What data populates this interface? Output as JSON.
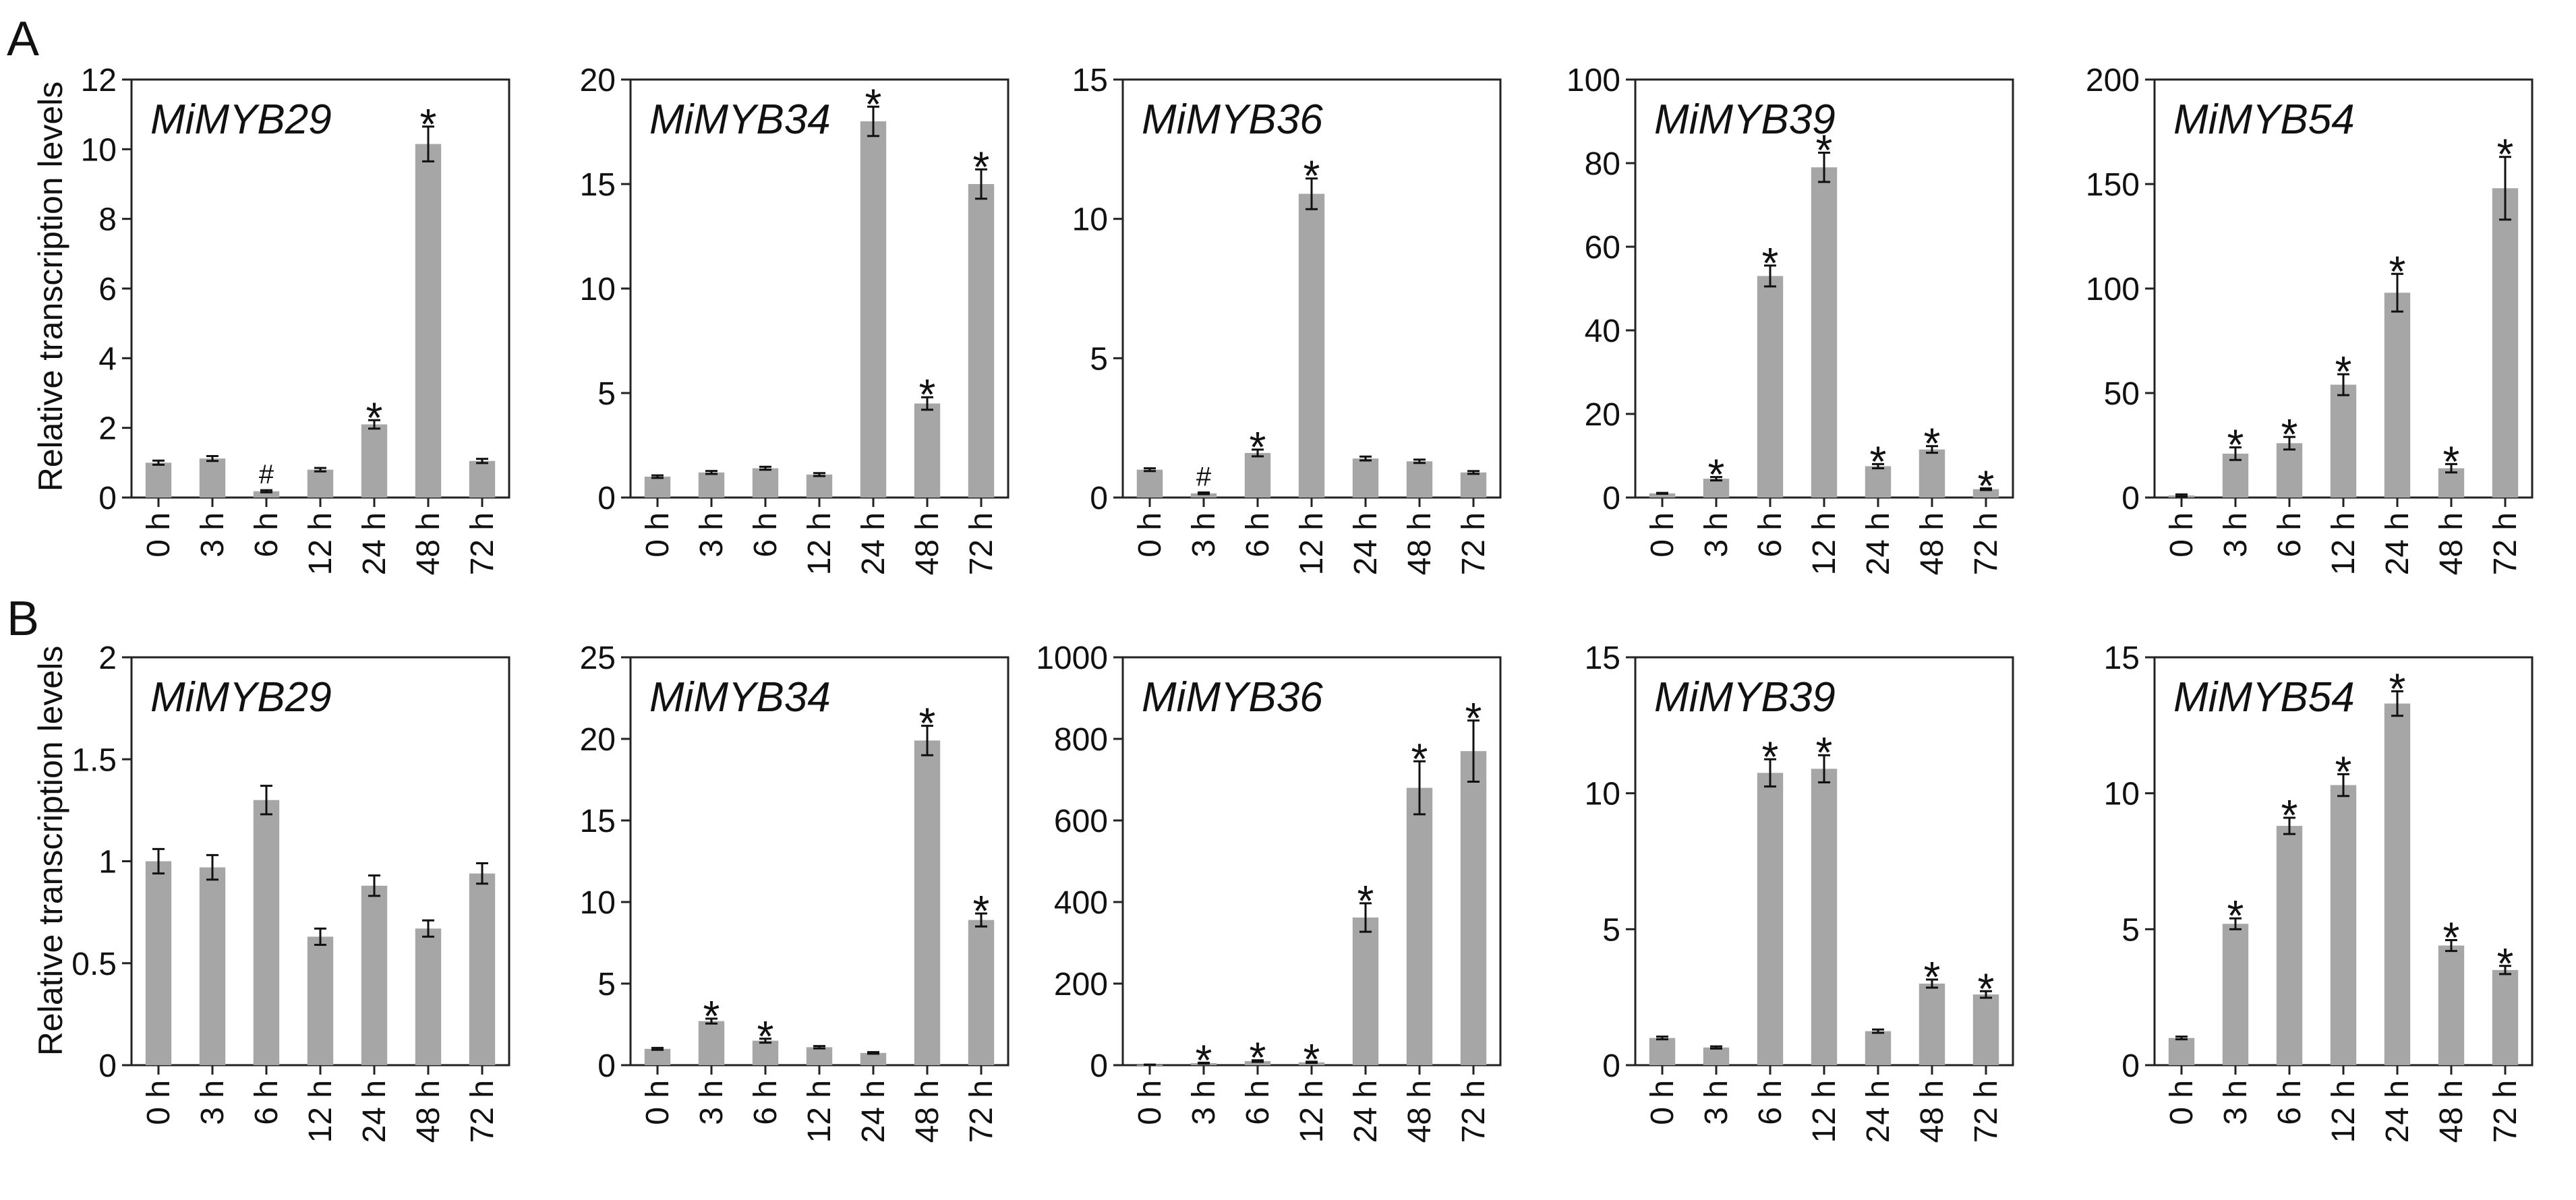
{
  "figure": {
    "panel_labels": [
      "A",
      "B"
    ],
    "y_axis_label": "Relative transcription  levels"
  },
  "chart_data": [
    {
      "type": "bar",
      "row": 0,
      "title": "MiMYB29",
      "categories": [
        "0 h",
        "3 h",
        "6 h",
        "12 h",
        "24 h",
        "48 h",
        "72 h"
      ],
      "ylim": [
        0,
        12
      ],
      "yticks": [
        0,
        2,
        4,
        6,
        8,
        10,
        12
      ],
      "values": [
        1.0,
        1.12,
        0.18,
        0.8,
        2.1,
        10.15,
        1.05
      ],
      "errors": [
        0.06,
        0.07,
        0.03,
        0.05,
        0.12,
        0.5,
        0.06
      ],
      "marks": [
        "",
        "",
        "#",
        "",
        "*",
        "*",
        ""
      ],
      "color": "#a6a6a6",
      "ylabel": "Relative transcription  levels",
      "xlabel": ""
    },
    {
      "type": "bar",
      "row": 0,
      "title": "MiMYB34",
      "categories": [
        "0 h",
        "3 h",
        "6 h",
        "12 h",
        "24 h",
        "48 h",
        "72 h"
      ],
      "ylim": [
        0,
        20
      ],
      "yticks": [
        0,
        5,
        10,
        15,
        20
      ],
      "values": [
        1.0,
        1.2,
        1.4,
        1.1,
        18.0,
        4.5,
        15.0
      ],
      "errors": [
        0.06,
        0.07,
        0.07,
        0.07,
        0.7,
        0.3,
        0.7
      ],
      "marks": [
        "",
        "",
        "",
        "",
        "*",
        "*",
        "*"
      ],
      "color": "#a6a6a6",
      "xlabel": ""
    },
    {
      "type": "bar",
      "row": 0,
      "title": "MiMYB36",
      "categories": [
        "0 h",
        "3 h",
        "6 h",
        "12 h",
        "24 h",
        "48 h",
        "72 h"
      ],
      "ylim": [
        0,
        15
      ],
      "yticks": [
        0,
        5,
        10,
        15
      ],
      "values": [
        1.0,
        0.15,
        1.6,
        10.9,
        1.4,
        1.3,
        0.9
      ],
      "errors": [
        0.05,
        0.03,
        0.12,
        0.55,
        0.07,
        0.06,
        0.05
      ],
      "marks": [
        "",
        "#",
        "*",
        "*",
        "",
        "",
        ""
      ],
      "color": "#a6a6a6",
      "xlabel": ""
    },
    {
      "type": "bar",
      "row": 0,
      "title": "MiMYB39",
      "categories": [
        "0 h",
        "3 h",
        "6 h",
        "12 h",
        "24 h",
        "48 h",
        "72 h"
      ],
      "ylim": [
        0,
        100
      ],
      "yticks": [
        0,
        20,
        40,
        60,
        80,
        100
      ],
      "values": [
        1.0,
        4.5,
        53.0,
        79.0,
        7.5,
        11.5,
        2.0
      ],
      "errors": [
        0.1,
        0.4,
        2.5,
        3.5,
        0.5,
        0.8,
        0.2
      ],
      "marks": [
        "",
        "*",
        "*",
        "*",
        "*",
        "*",
        "*"
      ],
      "color": "#a6a6a6",
      "xlabel": ""
    },
    {
      "type": "bar",
      "row": 0,
      "title": "MiMYB54",
      "categories": [
        "0 h",
        "3 h",
        "6 h",
        "12 h",
        "24 h",
        "48 h",
        "72 h"
      ],
      "ylim": [
        0,
        200
      ],
      "yticks": [
        0,
        50,
        100,
        150,
        200
      ],
      "values": [
        1.0,
        21.0,
        26.0,
        54.0,
        98.0,
        14.0,
        148.0
      ],
      "errors": [
        0.5,
        3.0,
        3.0,
        5.0,
        9.0,
        2.0,
        15.0
      ],
      "marks": [
        "",
        "*",
        "*",
        "*",
        "*",
        "*",
        "*"
      ],
      "color": "#a6a6a6",
      "xlabel": ""
    },
    {
      "type": "bar",
      "row": 1,
      "title": "MiMYB29",
      "categories": [
        "0 h",
        "3 h",
        "6 h",
        "12 h",
        "24 h",
        "48 h",
        "72 h"
      ],
      "ylim": [
        0,
        2
      ],
      "yticks": [
        "0",
        "0.5",
        "1",
        "1.5",
        "2"
      ],
      "values": [
        1.0,
        0.97,
        1.3,
        0.63,
        0.88,
        0.67,
        0.94
      ],
      "errors": [
        0.06,
        0.06,
        0.07,
        0.04,
        0.05,
        0.04,
        0.05
      ],
      "marks": [
        "",
        "",
        "",
        "",
        "",
        "",
        ""
      ],
      "color": "#a6a6a6",
      "ylabel": "Relative transcription  levels",
      "xlabel": ""
    },
    {
      "type": "bar",
      "row": 1,
      "title": "MiMYB34",
      "categories": [
        "0 h",
        "3 h",
        "6 h",
        "12 h",
        "24 h",
        "48 h",
        "72 h"
      ],
      "ylim": [
        0,
        25
      ],
      "yticks": [
        0,
        5,
        10,
        15,
        20,
        25
      ],
      "values": [
        1.0,
        2.7,
        1.5,
        1.1,
        0.75,
        19.9,
        8.9
      ],
      "errors": [
        0.06,
        0.15,
        0.12,
        0.07,
        0.05,
        0.9,
        0.4
      ],
      "marks": [
        "",
        "*",
        "*",
        "",
        "",
        "*",
        "*"
      ],
      "color": "#a6a6a6",
      "xlabel": ""
    },
    {
      "type": "bar",
      "row": 1,
      "title": "MiMYB36",
      "categories": [
        "0 h",
        "3 h",
        "6 h",
        "12 h",
        "24 h",
        "48 h",
        "72 h"
      ],
      "ylim": [
        0,
        1000
      ],
      "yticks": [
        0,
        200,
        400,
        600,
        800,
        1000
      ],
      "values": [
        1.0,
        5.0,
        10.0,
        7.0,
        362.0,
        680.0,
        770.0
      ],
      "errors": [
        0.5,
        1.0,
        2.0,
        1.5,
        35.0,
        65.0,
        75.0
      ],
      "marks": [
        "",
        "*",
        "*",
        "*",
        "*",
        "*",
        "*"
      ],
      "color": "#a6a6a6",
      "xlabel": ""
    },
    {
      "type": "bar",
      "row": 1,
      "title": "MiMYB39",
      "categories": [
        "0 h",
        "3 h",
        "6 h",
        "12 h",
        "24 h",
        "48 h",
        "72 h"
      ],
      "ylim": [
        0,
        15
      ],
      "yticks": [
        0,
        5,
        10,
        15
      ],
      "values": [
        1.0,
        0.65,
        10.75,
        10.9,
        1.25,
        3.0,
        2.6
      ],
      "errors": [
        0.05,
        0.04,
        0.5,
        0.5,
        0.06,
        0.15,
        0.12
      ],
      "marks": [
        "",
        "",
        "*",
        "*",
        "",
        "*",
        "*"
      ],
      "color": "#a6a6a6",
      "xlabel": ""
    },
    {
      "type": "bar",
      "row": 1,
      "title": "MiMYB54",
      "categories": [
        "0 h",
        "3 h",
        "6 h",
        "12 h",
        "24 h",
        "48 h",
        "72 h"
      ],
      "ylim": [
        0,
        15
      ],
      "yticks": [
        0,
        5,
        10,
        15
      ],
      "values": [
        1.0,
        5.2,
        8.8,
        10.3,
        13.3,
        4.4,
        3.5
      ],
      "errors": [
        0.05,
        0.2,
        0.3,
        0.4,
        0.45,
        0.2,
        0.15
      ],
      "marks": [
        "",
        "*",
        "*",
        "*",
        "*",
        "*",
        "*"
      ],
      "color": "#a6a6a6",
      "xlabel": ""
    }
  ]
}
